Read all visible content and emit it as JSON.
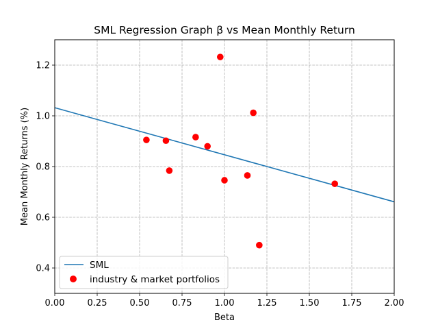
{
  "chart_data": {
    "type": "scatter",
    "title": "SML Regression Graph β vs Mean Monthly Return",
    "xlabel": "Beta",
    "ylabel": "Mean Monthly Returns (%)",
    "xlim": [
      0.0,
      2.0
    ],
    "ylim": [
      0.3,
      1.3
    ],
    "xticks": [
      0.0,
      0.25,
      0.5,
      0.75,
      1.0,
      1.25,
      1.5,
      1.75,
      2.0
    ],
    "xtick_labels": [
      "0.00",
      "0.25",
      "0.50",
      "0.75",
      "1.00",
      "1.25",
      "1.50",
      "1.75",
      "2.00"
    ],
    "yticks": [
      0.4,
      0.6,
      0.8,
      1.0,
      1.2
    ],
    "ytick_labels": [
      "0.4",
      "0.6",
      "0.8",
      "1.0",
      "1.2"
    ],
    "grid": true,
    "legend_position": "bottom-left",
    "series": [
      {
        "name": "SML",
        "kind": "line",
        "color": "#1f77b4",
        "x": [
          0.0,
          2.0
        ],
        "y": [
          1.032,
          0.661
        ]
      },
      {
        "name": "industry & market portfolios",
        "kind": "scatter",
        "color": "#ff0000",
        "x": [
          0.54,
          0.655,
          0.675,
          0.83,
          0.9,
          0.975,
          1.0,
          1.135,
          1.17,
          1.205,
          1.65
        ],
        "y": [
          0.905,
          0.902,
          0.784,
          0.916,
          0.88,
          1.232,
          0.746,
          0.765,
          1.012,
          0.49,
          0.732
        ]
      }
    ]
  }
}
